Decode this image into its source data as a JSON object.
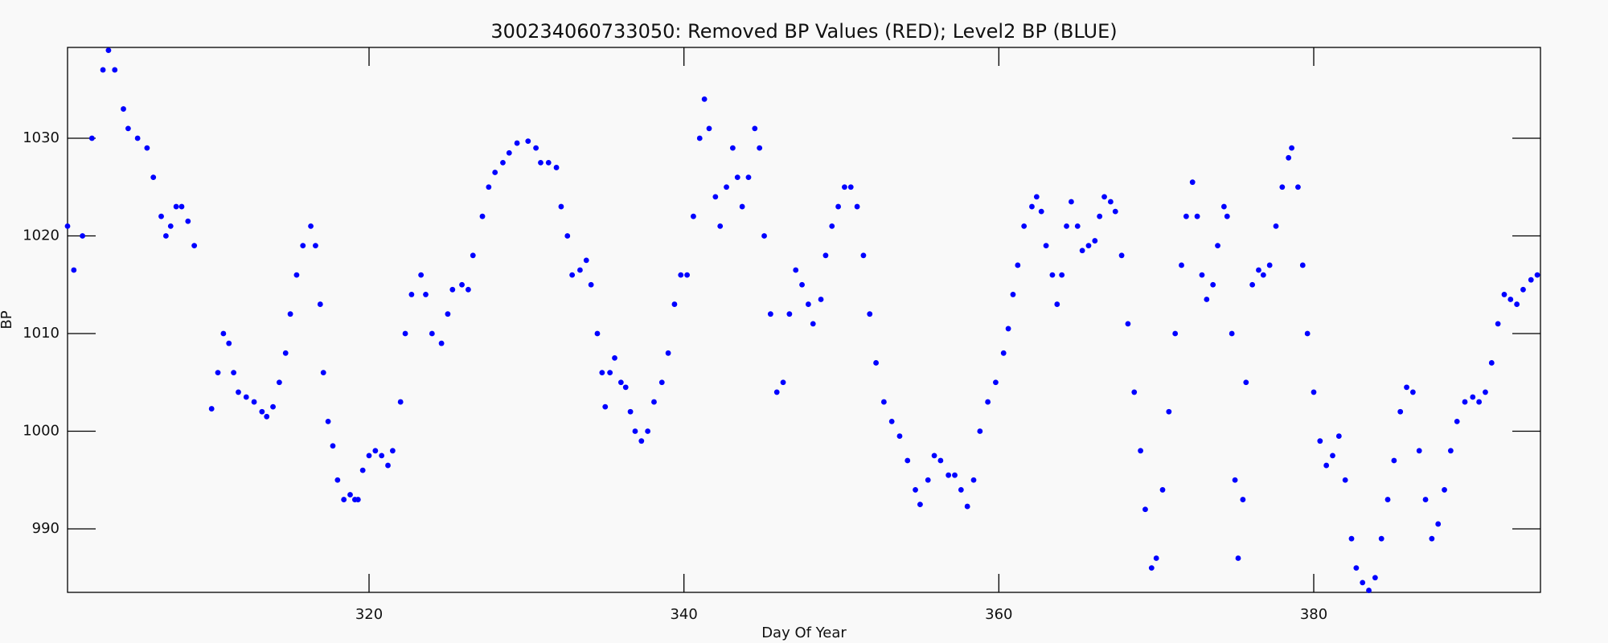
{
  "chart_data": {
    "type": "scatter",
    "title": "300234060733050: Removed BP Values (RED); Level2 BP (BLUE)",
    "x_label": "Day Of Year",
    "y_label": "BP",
    "color": "#0000ff",
    "xlim": [
      300.85,
      394.4
    ],
    "ylim": [
      983.5,
      1039.3
    ],
    "xticks": [
      320,
      340,
      360,
      380
    ],
    "yticks": [
      990,
      1000,
      1010,
      1020,
      1030
    ],
    "x": [
      300.85,
      301.25,
      301.8,
      302.4,
      303.1,
      303.45,
      303.85,
      304.4,
      304.7,
      305.3,
      305.9,
      306.3,
      306.8,
      307.1,
      307.4,
      307.75,
      308.1,
      308.5,
      308.9,
      310.0,
      310.4,
      310.75,
      311.1,
      311.4,
      311.7,
      312.2,
      312.7,
      313.2,
      313.5,
      313.9,
      314.3,
      314.7,
      315.0,
      315.4,
      315.8,
      316.3,
      316.6,
      316.9,
      317.1,
      317.4,
      317.7,
      318.0,
      318.4,
      318.8,
      319.1,
      319.3,
      319.6,
      320.0,
      320.4,
      320.8,
      321.2,
      321.5,
      322.0,
      322.3,
      322.7,
      323.3,
      323.6,
      324.0,
      324.6,
      325.0,
      325.3,
      325.9,
      326.3,
      326.6,
      327.2,
      327.6,
      328.0,
      328.5,
      328.9,
      329.4,
      330.1,
      330.6,
      330.9,
      331.4,
      331.9,
      332.2,
      332.6,
      332.9,
      333.4,
      333.8,
      334.1,
      334.5,
      334.8,
      335.0,
      335.3,
      335.6,
      336.0,
      336.3,
      336.6,
      336.9,
      337.3,
      337.7,
      338.1,
      338.6,
      339.0,
      339.4,
      339.8,
      340.2,
      340.6,
      341.0,
      341.3,
      341.6,
      342.0,
      342.3,
      342.7,
      343.1,
      343.4,
      343.7,
      344.1,
      344.5,
      344.8,
      345.1,
      345.5,
      345.9,
      346.3,
      346.7,
      347.1,
      347.5,
      347.9,
      348.2,
      348.7,
      349.0,
      349.4,
      349.8,
      350.2,
      350.6,
      351.0,
      351.4,
      351.8,
      352.2,
      352.7,
      353.2,
      353.7,
      354.2,
      354.7,
      355.0,
      355.5,
      355.9,
      356.3,
      356.8,
      357.2,
      357.6,
      358.0,
      358.4,
      358.8,
      359.3,
      359.8,
      360.3,
      360.6,
      360.9,
      361.2,
      361.6,
      362.1,
      362.4,
      362.7,
      363.0,
      363.4,
      363.7,
      364.0,
      364.3,
      364.6,
      365.0,
      365.3,
      365.7,
      366.1,
      366.4,
      366.7,
      367.1,
      367.4,
      367.8,
      368.2,
      368.6,
      369.0,
      369.3,
      369.7,
      370.0,
      370.4,
      370.8,
      371.2,
      371.6,
      371.9,
      372.3,
      372.6,
      372.9,
      373.2,
      373.6,
      373.9,
      374.3,
      374.5,
      374.8,
      375.0,
      375.2,
      375.5,
      375.7,
      376.1,
      376.5,
      376.8,
      377.2,
      377.6,
      378.0,
      378.4,
      378.6,
      379.0,
      379.3,
      379.6,
      380.0,
      380.4,
      380.8,
      381.2,
      381.6,
      382.0,
      382.4,
      382.7,
      383.1,
      383.5,
      383.9,
      384.3,
      384.7,
      385.1,
      385.5,
      385.9,
      386.3,
      386.7,
      387.1,
      387.5,
      387.9,
      388.3,
      388.7,
      389.1,
      389.6,
      390.1,
      390.5,
      390.9,
      391.3,
      391.7,
      392.1,
      392.5,
      392.9,
      393.3,
      393.8,
      394.2
    ],
    "values": [
      1021,
      1016.5,
      1020,
      1030,
      1037,
      1039,
      1037,
      1033,
      1031,
      1030,
      1029,
      1026,
      1022,
      1020,
      1021,
      1023,
      1023,
      1021.5,
      1019,
      1002.3,
      1006,
      1010,
      1009,
      1006,
      1004,
      1003.5,
      1003,
      1002,
      1001.5,
      1002.5,
      1005,
      1008,
      1012,
      1016,
      1019,
      1021,
      1019,
      1013,
      1006,
      1001,
      998.5,
      995,
      993,
      993.5,
      993,
      993,
      996,
      997.5,
      998,
      997.5,
      996.5,
      998,
      1003,
      1010,
      1014,
      1016,
      1014,
      1010,
      1009,
      1012,
      1014.5,
      1015,
      1014.5,
      1018,
      1022,
      1025,
      1026.5,
      1027.5,
      1028.5,
      1029.5,
      1029.7,
      1029,
      1027.5,
      1027.5,
      1027,
      1023,
      1020,
      1016,
      1016.5,
      1017.5,
      1015,
      1010,
      1006,
      1002.5,
      1006,
      1007.5,
      1005,
      1004.5,
      1002,
      1000,
      999,
      1000,
      1003,
      1005,
      1008,
      1013,
      1016,
      1016,
      1022,
      1030,
      1034,
      1031,
      1024,
      1021,
      1025,
      1029,
      1026,
      1023,
      1026,
      1031,
      1029,
      1020,
      1012,
      1004,
      1005,
      1012,
      1016.5,
      1015,
      1013,
      1011,
      1013.5,
      1018,
      1021,
      1023,
      1025,
      1025,
      1023,
      1018,
      1012,
      1007,
      1003,
      1001,
      999.5,
      997,
      994,
      992.5,
      995,
      997.5,
      997,
      995.5,
      995.5,
      994,
      992.3,
      995,
      1000,
      1003,
      1005,
      1008,
      1010.5,
      1014,
      1017,
      1021,
      1023,
      1024,
      1022.5,
      1019,
      1016,
      1013,
      1016,
      1021,
      1023.5,
      1021,
      1018.5,
      1019,
      1019.5,
      1022,
      1024,
      1023.5,
      1022.5,
      1018,
      1011,
      1004,
      998,
      992,
      986,
      987,
      994,
      1002,
      1010,
      1017,
      1022,
      1025.5,
      1022,
      1016,
      1013.5,
      1015,
      1019,
      1023,
      1022,
      1010,
      995,
      987,
      993,
      1005,
      1015,
      1016.5,
      1016,
      1017,
      1021,
      1025,
      1028,
      1029,
      1025,
      1017,
      1010,
      1004,
      999,
      996.5,
      997.5,
      999.5,
      995,
      989,
      986,
      984.5,
      983.7,
      985,
      989,
      993,
      997,
      1002,
      1004.5,
      1004,
      998,
      993,
      989,
      990.5,
      994,
      998,
      1001,
      1003,
      1003.5,
      1003,
      1004,
      1007,
      1011,
      1014,
      1013.5,
      1013,
      1014.5,
      1015.5,
      1016
    ]
  }
}
